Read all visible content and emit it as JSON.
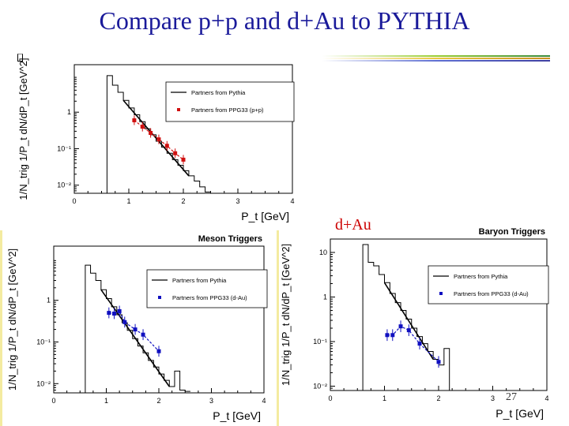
{
  "slide": {
    "title": "Compare p+p and d+Au to PYTHIA",
    "subtitle": "d+Au",
    "page_number": "27"
  },
  "colors": {
    "title": "#1a1a9a",
    "subtitle": "#cc0000",
    "pythia": "#000000",
    "ppg33_pp": "#d01010",
    "ppg33_dau": "#1010c0"
  },
  "chart_data": [
    {
      "id": "pp",
      "type": "line",
      "title": "",
      "xlabel": "P_t [GeV]",
      "ylabel": "1/N_trig 1/P_t dN/dP_t [GeV^2]",
      "xlim": [
        0,
        4
      ],
      "ylim": [
        0.006,
        20
      ],
      "yscale": "log",
      "xticks": [
        0,
        1,
        2,
        3,
        4
      ],
      "yticks": [
        {
          "v": 1,
          "label": "1"
        },
        {
          "v": 0.1,
          "label": "10⁻¹"
        },
        {
          "v": 0.01,
          "label": "10⁻²"
        }
      ],
      "legend_position": "top-right",
      "series": [
        {
          "name": "Partners from Pythia",
          "kind": "step",
          "x": [
            0.5,
            0.6,
            0.7,
            0.8,
            0.9,
            1.0,
            1.1,
            1.2,
            1.3,
            1.4,
            1.5,
            1.6,
            1.7,
            1.8,
            1.9,
            2.0,
            2.1,
            2.2,
            2.3,
            2.4
          ],
          "y": [
            0.006,
            10,
            5.5,
            3.5,
            2.1,
            1.3,
            0.85,
            0.55,
            0.35,
            0.24,
            0.16,
            0.11,
            0.075,
            0.05,
            0.035,
            0.025,
            0.018,
            0.013,
            0.009,
            0.0065
          ]
        },
        {
          "name": "Partners from PPG33 (p+p)",
          "kind": "points",
          "x": [
            1.1,
            1.25,
            1.4,
            1.55,
            1.7,
            1.85,
            2.0
          ],
          "y": [
            0.6,
            0.4,
            0.27,
            0.18,
            0.12,
            0.075,
            0.05
          ]
        }
      ]
    },
    {
      "id": "meson",
      "type": "line",
      "title": "Meson Triggers",
      "xlabel": "P_t [GeV]",
      "ylabel": "1/N_trig 1/P_t dN/dP_t [GeV^2]",
      "xlim": [
        0,
        4
      ],
      "ylim": [
        0.006,
        20
      ],
      "yscale": "log",
      "xticks": [
        0,
        1,
        2,
        3,
        4
      ],
      "yticks": [
        {
          "v": 1,
          "label": "1"
        },
        {
          "v": 0.1,
          "label": "10⁻¹"
        },
        {
          "v": 0.01,
          "label": "10⁻²"
        }
      ],
      "legend_position": "top-right",
      "series": [
        {
          "name": "Partners from Pythia",
          "kind": "step",
          "x": [
            0.5,
            0.6,
            0.7,
            0.8,
            0.9,
            1.0,
            1.1,
            1.2,
            1.3,
            1.4,
            1.5,
            1.6,
            1.7,
            1.8,
            1.9,
            2.0,
            2.1,
            2.2,
            2.3,
            2.4,
            2.5
          ],
          "y": [
            0.006,
            7,
            4.5,
            3,
            1.8,
            1.1,
            0.7,
            0.45,
            0.29,
            0.19,
            0.12,
            0.08,
            0.055,
            0.036,
            0.025,
            0.017,
            0.012,
            0.0085,
            0.02,
            0.007,
            0.0065
          ]
        },
        {
          "name": "Partners from PPG33 (d-Au)",
          "kind": "points",
          "x": [
            1.05,
            1.15,
            1.25,
            1.35,
            1.55,
            1.7,
            2.0
          ],
          "y": [
            0.5,
            0.48,
            0.55,
            0.3,
            0.2,
            0.15,
            0.06
          ]
        }
      ]
    },
    {
      "id": "baryon",
      "type": "line",
      "title": "Baryon Triggers",
      "xlabel": "P_t [GeV]",
      "ylabel": "1/N_trig 1/P_t dN/dP_t [GeV^2]",
      "xlim": [
        0,
        4
      ],
      "ylim": [
        0.008,
        20
      ],
      "yscale": "log",
      "xticks": [
        0,
        1,
        2,
        3,
        4
      ],
      "yticks": [
        {
          "v": 10,
          "label": "10"
        },
        {
          "v": 1,
          "label": "1"
        },
        {
          "v": 0.1,
          "label": "10⁻¹"
        },
        {
          "v": 0.01,
          "label": "10⁻²"
        }
      ],
      "legend_position": "top-right",
      "series": [
        {
          "name": "Partners from Pythia",
          "kind": "step",
          "x": [
            0.6,
            0.7,
            0.8,
            0.9,
            1.0,
            1.1,
            1.2,
            1.3,
            1.4,
            1.5,
            1.6,
            1.7,
            1.8,
            1.9,
            2.0,
            2.1,
            2.2
          ],
          "y": [
            15,
            6,
            5,
            3.2,
            2.1,
            1.2,
            0.75,
            0.5,
            0.32,
            0.2,
            0.13,
            0.09,
            0.06,
            0.04,
            0.03,
            0.07,
            0.008
          ]
        },
        {
          "name": "Partners from PPG33 (d-Au)",
          "kind": "points",
          "x": [
            1.05,
            1.15,
            1.3,
            1.45,
            1.65,
            2.0
          ],
          "y": [
            0.14,
            0.14,
            0.22,
            0.18,
            0.09,
            0.035
          ]
        }
      ]
    }
  ]
}
